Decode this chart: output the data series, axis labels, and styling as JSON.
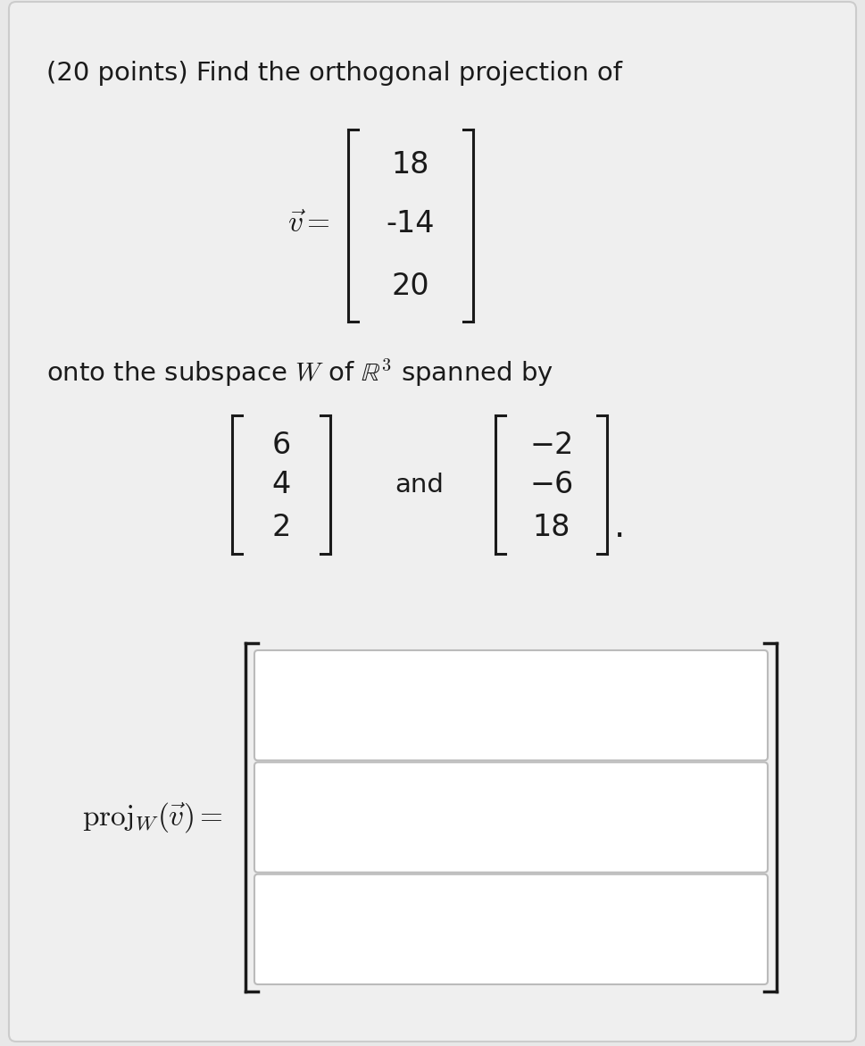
{
  "background_color": "#e8e8e8",
  "card_color": "#efefef",
  "text_color": "#1a1a1a",
  "title_text": "(20 points) Find the orthogonal projection of",
  "v_vector": [
    "18",
    "-14",
    "20"
  ],
  "subspace_text": "onto the subspace $W$ of $\\mathbb{R}^3$ spanned by",
  "w1_vector": [
    "6",
    "4",
    "2"
  ],
  "w2_vector": [
    "−2",
    "−6",
    "18"
  ],
  "input_box_color": "#ffffff",
  "input_box_border": "#bbbbbb",
  "bracket_color": "#1a1a1a",
  "font_size_title": 21,
  "font_size_body": 21,
  "font_size_vector": 22,
  "font_size_proj": 24
}
